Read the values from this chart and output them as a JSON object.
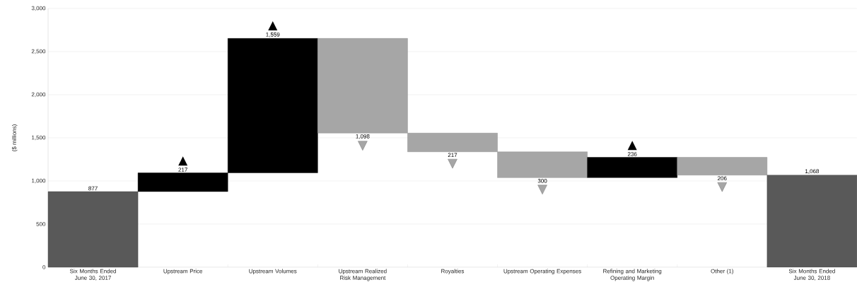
{
  "chart_data": {
    "type": "bar",
    "ylabel": "($ millions)",
    "categories": [
      "Six Months Ended June 30, 2017",
      "Upstream Price",
      "Upstream Volumes",
      "Upstream Realized Risk Management",
      "Royalties",
      "Upstream Operating Expenses",
      "Refining and Marketing Operating Margin",
      "Other (1)",
      "Six Months Ended June 30, 2018"
    ],
    "values": [
      877,
      217,
      1559,
      -1098,
      -217,
      -300,
      236,
      -206,
      1068
    ],
    "base": [
      0,
      877,
      1094,
      2653,
      1555,
      1338,
      1038,
      1274,
      0
    ],
    "colors": [
      "#595959",
      "#000000",
      "#000000",
      "#a6a6a6",
      "#a6a6a6",
      "#a6a6a6",
      "#000000",
      "#a6a6a6",
      "#595959"
    ],
    "value_labels": [
      "877",
      "217",
      "1,559",
      "1,098",
      "217",
      "300",
      "236",
      "206",
      "1,068"
    ],
    "ylim": [
      0,
      3000
    ],
    "yticks": [
      0,
      500,
      {
        "value": 1000,
        "label": "1,000"
      },
      {
        "value": 1500,
        "label": "1,500"
      },
      {
        "value": 2000,
        "label": "2,000"
      },
      {
        "value": 2500,
        "label": "2,500"
      },
      {
        "value": 3000,
        "label": "3,000"
      }
    ],
    "grid": "y"
  }
}
